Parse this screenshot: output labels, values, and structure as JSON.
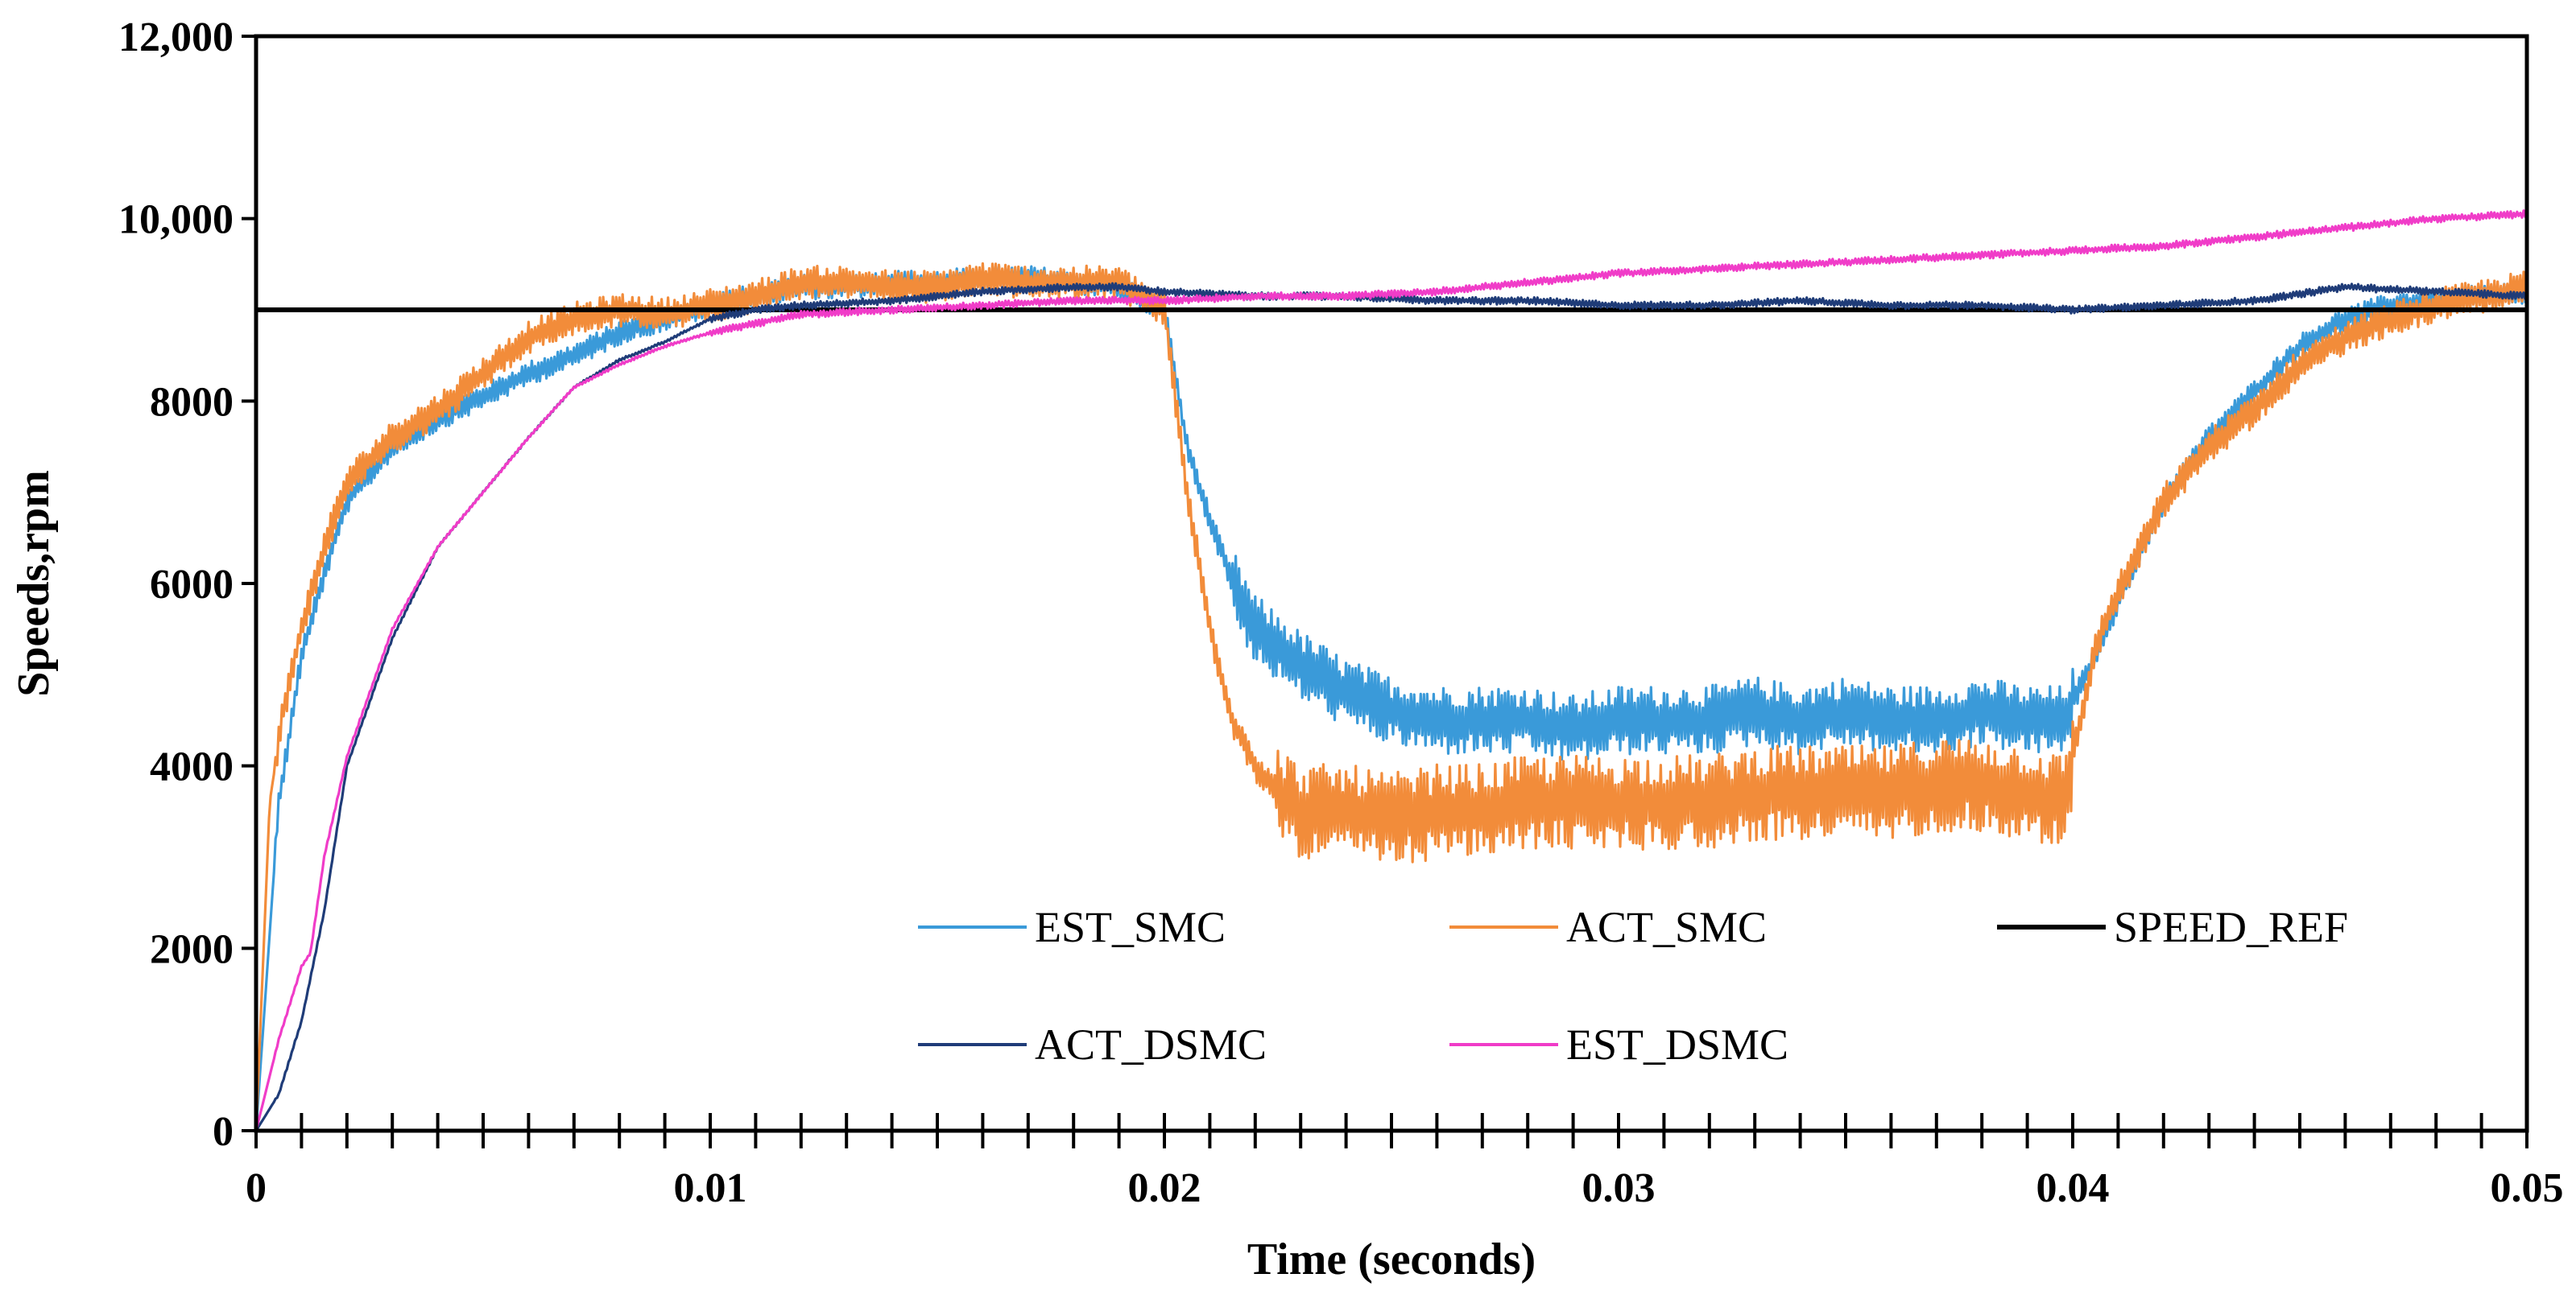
{
  "chart_data": {
    "type": "line",
    "title": "",
    "xlabel": "Time (seconds)",
    "ylabel": "Speeds,rpm",
    "xlim": [
      0,
      0.05
    ],
    "ylim": [
      0,
      12000
    ],
    "grid": false,
    "legend_position": "lower-right",
    "x_ticks": [
      0,
      0.01,
      0.02,
      0.03,
      0.04,
      0.05
    ],
    "x_tick_labels": [
      "0",
      "0.01",
      "0.02",
      "0.03",
      "0.04",
      "0.05"
    ],
    "y_ticks": [
      0,
      2000,
      4000,
      6000,
      8000,
      10000,
      12000
    ],
    "y_tick_labels": [
      "0",
      "2000",
      "4000",
      "6000",
      "8000",
      "10,000",
      "12,000"
    ],
    "series": [
      {
        "name": "EST_SMC",
        "color": "#3a9ad9",
        "x": [
          0,
          0.0005,
          0.001,
          0.0015,
          0.002,
          0.003,
          0.004,
          0.005,
          0.006,
          0.007,
          0.008,
          0.009,
          0.01,
          0.011,
          0.012,
          0.013,
          0.014,
          0.015,
          0.016,
          0.017,
          0.018,
          0.019,
          0.02,
          0.0205,
          0.021,
          0.0215,
          0.022,
          0.0225,
          0.023,
          0.024,
          0.025,
          0.026,
          0.027,
          0.028,
          0.029,
          0.03,
          0.031,
          0.032,
          0.033,
          0.034,
          0.035,
          0.036,
          0.037,
          0.038,
          0.039,
          0.0398,
          0.0405,
          0.041,
          0.042,
          0.043,
          0.044,
          0.045,
          0.046,
          0.047,
          0.048,
          0.049,
          0.05
        ],
        "y": [
          0,
          3600,
          5200,
          6100,
          6900,
          7500,
          7800,
          8050,
          8300,
          8500,
          8750,
          8900,
          9050,
          9150,
          9250,
          9250,
          9300,
          9300,
          9350,
          9350,
          9300,
          9250,
          9000,
          7500,
          6700,
          6000,
          5500,
          5300,
          5100,
          4800,
          4600,
          4500,
          4500,
          4500,
          4400,
          4500,
          4500,
          4500,
          4600,
          4500,
          4600,
          4500,
          4500,
          4600,
          4500,
          4500,
          5200,
          5800,
          6900,
          7600,
          8100,
          8600,
          8900,
          9050,
          9100,
          9150,
          9200
        ],
        "noise": 380,
        "noise_range": [
          0.0215,
          0.04
        ]
      },
      {
        "name": "ACT_SMC",
        "color": "#f28c3a",
        "x": [
          0,
          0.0003,
          0.0006,
          0.001,
          0.0015,
          0.002,
          0.003,
          0.004,
          0.005,
          0.006,
          0.007,
          0.008,
          0.009,
          0.01,
          0.011,
          0.012,
          0.013,
          0.014,
          0.015,
          0.016,
          0.017,
          0.018,
          0.019,
          0.02,
          0.0205,
          0.021,
          0.0215,
          0.022,
          0.0225,
          0.023,
          0.024,
          0.025,
          0.026,
          0.027,
          0.028,
          0.029,
          0.03,
          0.031,
          0.032,
          0.033,
          0.034,
          0.035,
          0.036,
          0.037,
          0.038,
          0.039,
          0.0398,
          0.0405,
          0.041,
          0.042,
          0.043,
          0.044,
          0.045,
          0.046,
          0.047,
          0.048,
          0.049,
          0.05
        ],
        "y": [
          0,
          3600,
          4600,
          5500,
          6400,
          7100,
          7600,
          7900,
          8300,
          8700,
          8900,
          9000,
          8950,
          9050,
          9150,
          9300,
          9300,
          9250,
          9250,
          9350,
          9300,
          9300,
          9300,
          9000,
          7000,
          5500,
          4500,
          4000,
          3700,
          3500,
          3500,
          3400,
          3500,
          3500,
          3600,
          3600,
          3600,
          3600,
          3600,
          3700,
          3700,
          3700,
          3700,
          3800,
          3800,
          3700,
          3600,
          5300,
          5900,
          6900,
          7500,
          7900,
          8400,
          8700,
          8900,
          9050,
          9150,
          9250
        ],
        "noise": 520,
        "noise_range": [
          0.0225,
          0.04
        ]
      },
      {
        "name": "SPEED_REF",
        "color": "#000000",
        "x": [
          0,
          0.05
        ],
        "y": [
          9000,
          9000
        ],
        "noise": 0,
        "noise_range": [
          0,
          0
        ]
      },
      {
        "name": "ACT_DSMC",
        "color": "#1f3c78",
        "x": [
          0,
          0.0005,
          0.001,
          0.0015,
          0.002,
          0.003,
          0.004,
          0.005,
          0.006,
          0.007,
          0.008,
          0.009,
          0.01,
          0.011,
          0.012,
          0.014,
          0.016,
          0.018,
          0.019,
          0.02,
          0.022,
          0.024,
          0.026,
          0.028,
          0.03,
          0.032,
          0.034,
          0.036,
          0.038,
          0.04,
          0.042,
          0.044,
          0.046,
          0.048,
          0.05
        ],
        "y": [
          0,
          400,
          1200,
          2400,
          4000,
          5400,
          6400,
          7000,
          7600,
          8150,
          8450,
          8650,
          8900,
          9000,
          9050,
          9100,
          9200,
          9250,
          9250,
          9200,
          9150,
          9150,
          9100,
          9100,
          9050,
          9050,
          9100,
          9050,
          9050,
          9000,
          9050,
          9100,
          9250,
          9200,
          9150
        ],
        "noise": 40,
        "noise_range": [
          0.01,
          0.05
        ]
      },
      {
        "name": "EST_DSMC",
        "color": "#f03cc8",
        "x": [
          0,
          0.0005,
          0.001,
          0.0012,
          0.0015,
          0.002,
          0.003,
          0.004,
          0.005,
          0.006,
          0.007,
          0.008,
          0.009,
          0.01,
          0.011,
          0.012,
          0.014,
          0.016,
          0.018,
          0.02,
          0.022,
          0.024,
          0.026,
          0.028,
          0.03,
          0.032,
          0.034,
          0.036,
          0.038,
          0.04,
          0.042,
          0.044,
          0.046,
          0.048,
          0.05
        ],
        "y": [
          0,
          1000,
          1800,
          1950,
          3000,
          4100,
          5500,
          6400,
          7000,
          7600,
          8150,
          8400,
          8600,
          8750,
          8850,
          8950,
          9000,
          9050,
          9100,
          9100,
          9150,
          9150,
          9200,
          9300,
          9400,
          9450,
          9500,
          9550,
          9600,
          9650,
          9700,
          9800,
          9900,
          10000,
          10050
        ],
        "noise": 40,
        "noise_range": [
          0.01,
          0.05
        ]
      }
    ],
    "legend": [
      {
        "name": "EST_SMC",
        "color": "#3a9ad9",
        "row": 0,
        "col": 0
      },
      {
        "name": "ACT_SMC",
        "color": "#f28c3a",
        "row": 0,
        "col": 1
      },
      {
        "name": "SPEED_REF",
        "color": "#000000",
        "row": 0,
        "col": 2
      },
      {
        "name": "ACT_DSMC",
        "color": "#1f3c78",
        "row": 1,
        "col": 0
      },
      {
        "name": "EST_DSMC",
        "color": "#f03cc8",
        "row": 1,
        "col": 1
      }
    ]
  }
}
